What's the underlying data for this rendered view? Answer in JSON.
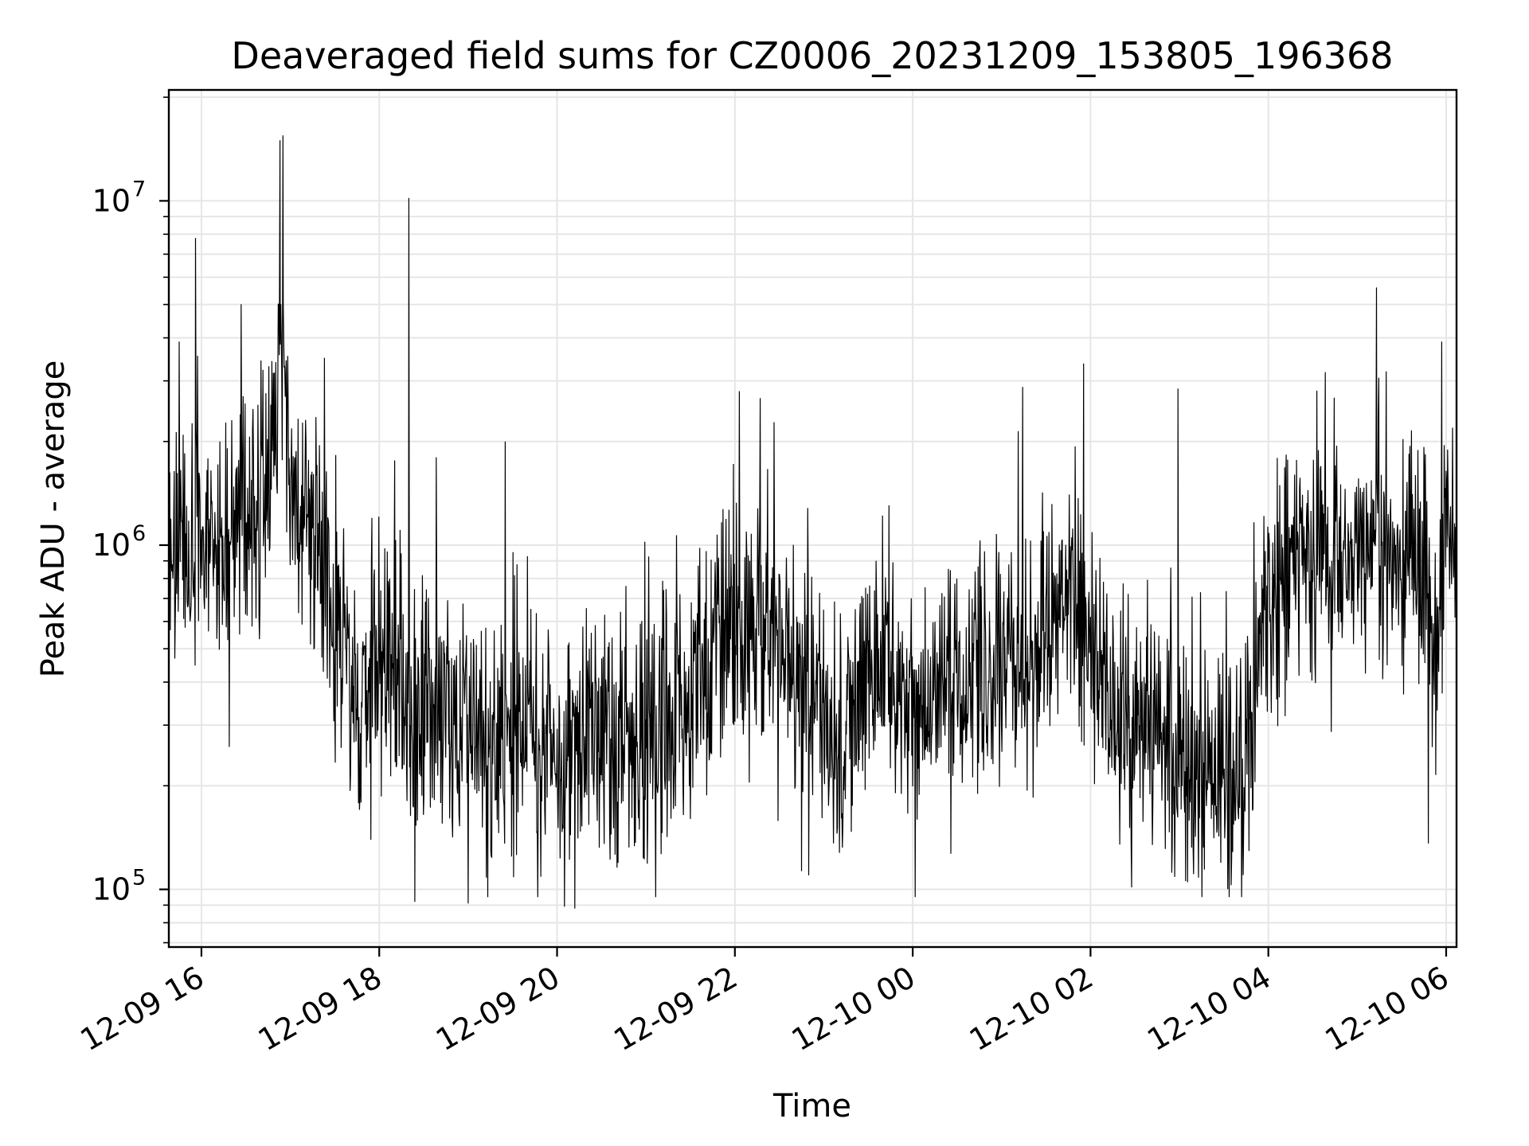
{
  "chart_data": {
    "type": "line",
    "title": "Deaveraged field sums for CZ0006_20231209_153805_196368",
    "xlabel": "Time",
    "ylabel": "Peak ADU - average",
    "yscale": "log",
    "grid": true,
    "line_color": "#000000",
    "grid_color": "#e6e6e6",
    "xlim": [
      "2023-12-09 15:38",
      "2023-12-10 06:07"
    ],
    "ylim": [
      68000,
      21000000
    ],
    "x_ticks": [
      "12-09 16",
      "12-09 18",
      "12-09 20",
      "12-09 22",
      "12-10 00",
      "12-10 02",
      "12-10 04",
      "12-10 06"
    ],
    "y_ticks": [
      {
        "base": "10",
        "exp": "5",
        "value": 100000
      },
      {
        "base": "10",
        "exp": "6",
        "value": 1000000
      },
      {
        "base": "10",
        "exp": "7",
        "value": 10000000
      }
    ],
    "series": [
      {
        "x": [
          "2023-12-09 15:38",
          "2023-12-09 15:45",
          "2023-12-09 16:00",
          "2023-12-09 16:15",
          "2023-12-09 16:30",
          "2023-12-09 16:45",
          "2023-12-09 16:52",
          "2023-12-09 16:55",
          "2023-12-09 17:00",
          "2023-12-09 17:10",
          "2023-12-09 17:20",
          "2023-12-09 17:30",
          "2023-12-09 17:45",
          "2023-12-09 18:00",
          "2023-12-09 18:15",
          "2023-12-09 18:25",
          "2023-12-09 18:35",
          "2023-12-09 19:00",
          "2023-12-09 19:15",
          "2023-12-09 19:30",
          "2023-12-09 19:45",
          "2023-12-09 20:00",
          "2023-12-09 20:15",
          "2023-12-09 20:30",
          "2023-12-09 20:45",
          "2023-12-09 21:00",
          "2023-12-09 21:15",
          "2023-12-09 21:30",
          "2023-12-09 21:45",
          "2023-12-09 22:00",
          "2023-12-09 22:15",
          "2023-12-09 22:30",
          "2023-12-09 22:45",
          "2023-12-09 23:00",
          "2023-12-09 23:15",
          "2023-12-09 23:30",
          "2023-12-09 23:45",
          "2023-12-10 00:00",
          "2023-12-10 00:15",
          "2023-12-10 00:30",
          "2023-12-10 00:45",
          "2023-12-10 01:00",
          "2023-12-10 01:15",
          "2023-12-10 01:30",
          "2023-12-10 01:45",
          "2023-12-10 02:00",
          "2023-12-10 02:15",
          "2023-12-10 02:30",
          "2023-12-10 02:45",
          "2023-12-10 03:00",
          "2023-12-10 03:15",
          "2023-12-10 03:30",
          "2023-12-10 03:45",
          "2023-12-10 04:00",
          "2023-12-10 04:15",
          "2023-12-10 04:30",
          "2023-12-10 04:45",
          "2023-12-10 05:00",
          "2023-12-10 05:15",
          "2023-12-10 05:30",
          "2023-12-10 05:45",
          "2023-12-10 05:52",
          "2023-12-10 06:00",
          "2023-12-10 06:07"
        ],
        "y": [
          950000,
          900000,
          1000000,
          1100000,
          1300000,
          1400000,
          3500000,
          3800000,
          1400000,
          1200000,
          1100000,
          600000,
          380000,
          400000,
          500000,
          300000,
          350000,
          300000,
          260000,
          280000,
          320000,
          250000,
          260000,
          280000,
          250000,
          270000,
          290000,
          380000,
          500000,
          650000,
          620000,
          550000,
          420000,
          300000,
          320000,
          380000,
          450000,
          320000,
          350000,
          400000,
          420000,
          450000,
          480000,
          550000,
          800000,
          500000,
          320000,
          280000,
          250000,
          230000,
          240000,
          220000,
          250000,
          750000,
          850000,
          900000,
          950000,
          1000000,
          1050000,
          1000000,
          900000,
          420000,
          1050000,
          1100000
        ]
      }
    ],
    "peaks": [
      {
        "x": "2023-12-09 15:56",
        "y": 7800000
      },
      {
        "x": "2023-12-09 15:45",
        "y": 3900000
      },
      {
        "x": "2023-12-09 16:53",
        "y": 15000000
      },
      {
        "x": "2023-12-09 16:55",
        "y": 15500000
      },
      {
        "x": "2023-12-09 17:23",
        "y": 3500000
      },
      {
        "x": "2023-12-09 18:20",
        "y": 10200000
      },
      {
        "x": "2023-12-09 19:25",
        "y": 2000000
      },
      {
        "x": "2023-12-09 22:03",
        "y": 2800000
      },
      {
        "x": "2023-12-10 02:59",
        "y": 2850000
      },
      {
        "x": "2023-12-10 05:13",
        "y": 5600000
      },
      {
        "x": "2023-12-10 05:57",
        "y": 3900000
      }
    ],
    "dips": [
      {
        "x": "2023-12-09 18:24",
        "y": 92000
      },
      {
        "x": "2023-12-09 19:00",
        "y": 91000
      },
      {
        "x": "2023-12-09 20:05",
        "y": 89000
      },
      {
        "x": "2023-12-09 20:12",
        "y": 88000
      },
      {
        "x": "2023-12-09 22:45",
        "y": 113000
      },
      {
        "x": "2023-12-10 03:43",
        "y": 110000
      }
    ]
  }
}
